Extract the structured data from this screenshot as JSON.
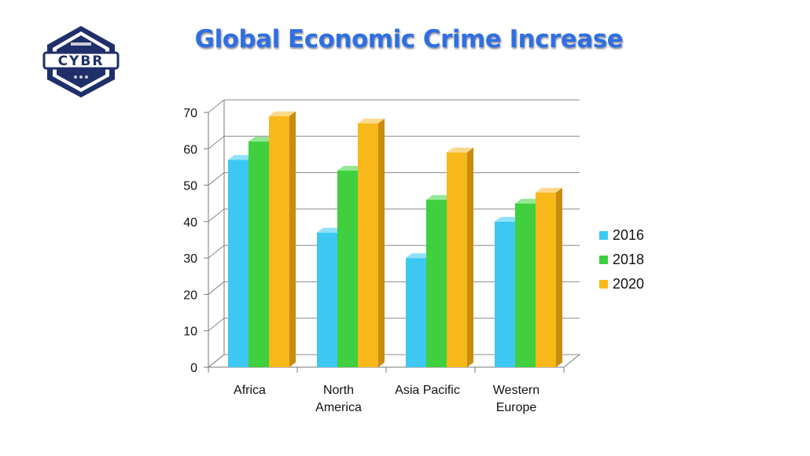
{
  "title": "Global Economic Crime Increase",
  "logo": {
    "text": "CYBR",
    "colors": {
      "navy": "#1f2f6a",
      "silver": "#c9ccd6"
    }
  },
  "chart_data": {
    "type": "bar",
    "title": "Global Economic Crime Increase",
    "xlabel": "",
    "ylabel": "",
    "categories": [
      "Africa",
      "North America",
      "Asia Pacific",
      "Western Europe"
    ],
    "category_lines": [
      [
        "Africa"
      ],
      [
        "North",
        "America"
      ],
      [
        "Asia Pacific"
      ],
      [
        "Western",
        "Europe"
      ]
    ],
    "series": [
      {
        "name": "2016",
        "values": [
          57,
          37,
          30,
          40
        ],
        "color": "#3cc8f2",
        "top": "#8fe2fa",
        "side": "#2a9fc7"
      },
      {
        "name": "2018",
        "values": [
          62,
          54,
          46,
          45
        ],
        "color": "#3fcf3f",
        "top": "#95e895",
        "side": "#2ea12e"
      },
      {
        "name": "2020",
        "values": [
          69,
          67,
          59,
          48
        ],
        "color": "#f8b81a",
        "top": "#fcd98a",
        "side": "#c98b10"
      }
    ],
    "ylim": [
      0,
      70
    ],
    "yticks": [
      0,
      10,
      20,
      30,
      40,
      50,
      60,
      70
    ],
    "grid": true,
    "legend": "right",
    "style": "3d"
  }
}
